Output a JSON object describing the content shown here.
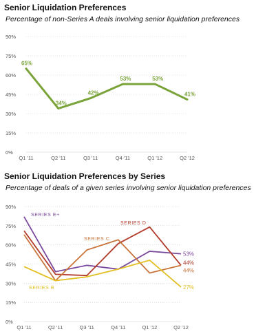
{
  "chart_data": [
    {
      "type": "line",
      "title": "Senior Liquidation Preferences",
      "subtitle": "Percentage of non-Series A deals involving senior liquidation preferences",
      "categories": [
        "Q1 '11",
        "Q2 '11",
        "Q3 '11",
        "Q4 '11",
        "Q1 '12",
        "Q2 '12"
      ],
      "ylim": [
        0,
        90
      ],
      "yticks": [
        "0%",
        "15%",
        "30%",
        "45%",
        "60%",
        "75%",
        "90%"
      ],
      "grid": true,
      "series": [
        {
          "values": [
            65,
            34,
            42,
            53,
            53,
            41
          ],
          "labels": [
            "65%",
            "34%",
            "42%",
            "53%",
            "53%",
            "41%"
          ],
          "color": "#7aa33a"
        }
      ]
    },
    {
      "type": "line",
      "title": "Senior Liquidation Preferences by Series",
      "subtitle": "Percentage of deals of a given series involving senior liquidation preferences",
      "categories": [
        "Q1 '11",
        "Q2 '11",
        "Q3 '11",
        "Q4 '11",
        "Q1 '12",
        "Q2 '12"
      ],
      "ylim": [
        0,
        90
      ],
      "yticks": [
        "0%",
        "15%",
        "30%",
        "45%",
        "60%",
        "75%",
        "90%"
      ],
      "grid": true,
      "series": [
        {
          "name": "SERIES E+",
          "values": [
            82,
            39,
            44,
            41,
            55,
            53
          ],
          "end_label": "53%",
          "color": "#7b4a9e"
        },
        {
          "name": "SERIES D",
          "values": [
            71,
            37,
            36,
            61,
            74,
            44
          ],
          "end_label": "44%",
          "color": "#b23a2a"
        },
        {
          "name": "SERIES C",
          "values": [
            68,
            32,
            56,
            64,
            38,
            44
          ],
          "end_label": "44%",
          "color": "#c9743a"
        },
        {
          "name": "SERIES B",
          "values": [
            43,
            32,
            35,
            41,
            48,
            27
          ],
          "end_label": "27%",
          "color": "#e3bf23"
        }
      ]
    }
  ]
}
